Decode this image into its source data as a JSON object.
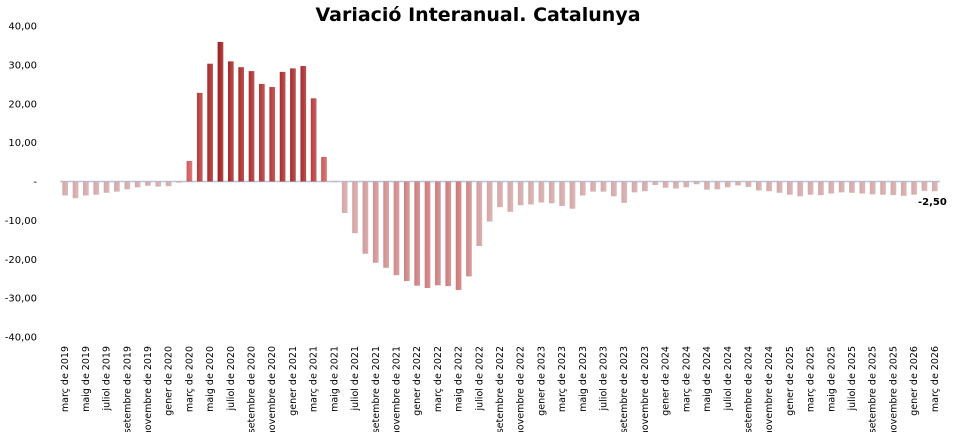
{
  "chart_data": {
    "type": "bar",
    "title": "Variació Interanual. Catalunya",
    "xlabel": "",
    "ylabel": "",
    "ylim": [
      -40,
      40
    ],
    "y_ticks": [
      40,
      30,
      20,
      10,
      0,
      -10,
      -20,
      -30,
      -40
    ],
    "y_tick_labels": [
      "40,00",
      "30,00",
      "20,00",
      "10,00",
      "-",
      "-10,00",
      "-20,00",
      "-30,00",
      "-40,00"
    ],
    "grid": false,
    "legend": "none",
    "categories": [
      "març de 2019",
      "abril de 2019",
      "maig de 2019",
      "juny de 2019",
      "juliol de 2019",
      "agost de 2019",
      "setembre de 2019",
      "octubre de 2019",
      "novembre de 2019",
      "desembre de 2019",
      "gener de 2020",
      "febrer de 2020",
      "març de 2020",
      "abril de 2020",
      "maig de 2020",
      "juny de 2020",
      "juliol de 2020",
      "agost de 2020",
      "setembre de 2020",
      "octubre de 2020",
      "novembre de 2020",
      "desembre de 2020",
      "gener de 2021",
      "febrer de 2021",
      "març de 2021",
      "abril de 2021",
      "maig de 2021",
      "juny de 2021",
      "juliol de 2021",
      "agost de 2021",
      "setembre de 2021",
      "octubre de 2021",
      "novembre de 2021",
      "desembre de 2021",
      "gener de 2022",
      "febrer de 2022",
      "març de 2022",
      "abril de 2022",
      "maig de 2022",
      "juny de 2022",
      "juliol de 2022",
      "agost de 2022",
      "setembre de 2022",
      "octubre de 2022",
      "novembre de 2022",
      "desembre de 2022",
      "gener de 2023",
      "febrer de 2023",
      "març de 2023",
      "abril de 2023",
      "maig de 2023",
      "juny de 2023",
      "juliol de 2023",
      "agost de 2023",
      "setembre de 2023",
      "octubre de 2023",
      "novembre de 2023",
      "desembre de 2023",
      "gener de 2024",
      "febrer de 2024",
      "març de 2024",
      "abril de 2024",
      "maig de 2024",
      "juny de 2024",
      "juliol de 2024",
      "agost de 2024",
      "setembre de 2024",
      "octubre de 2024",
      "novembre de 2024",
      "desembre de 2024",
      "gener de 2025",
      "febrer de 2025",
      "març de 2025",
      "abril de 2025",
      "maig de 2025",
      "juny de 2025",
      "juliol de 2025",
      "agost de 2025",
      "setembre de 2025",
      "octubre de 2025",
      "novembre de 2025",
      "desembre de 2025",
      "gener de 2026",
      "febrer de 2026",
      "març de 2026"
    ],
    "visible_tick_labels": [
      "març de 2019",
      "maig de 2019",
      "juliol de 2019",
      "setembre de 2019",
      "novembre de 2019",
      "gener de 2020",
      "març de 2020",
      "maig de 2020",
      "juliol de 2020",
      "setembre de 2020",
      "novembre de 2020",
      "gener de 2021",
      "març de 2021",
      "maig de 2021",
      "juliol de 2021",
      "setembre de 2021",
      "novembre de 2021",
      "gener de 2022",
      "març de 2022",
      "maig de 2022",
      "juliol de 2022",
      "setembre de 2022",
      "novembre de 2022",
      "gener de 2023",
      "març de 2023",
      "maig de 2023",
      "juliol de 2023",
      "setembre de 2023",
      "novembre de 2023",
      "gener de 2024",
      "març de 2024",
      "maig de 2024",
      "juliol de 2024",
      "setembre de 2024",
      "novembre de 2024",
      "gener de 2025",
      "març de 2025",
      "maig de 2025",
      "juliol de 2025",
      "setembre de 2025",
      "novembre de 2025",
      "gener de 2026",
      "març de 2026"
    ],
    "series": [
      {
        "values": [
          -3.6,
          -4.3,
          -3.6,
          -3.4,
          -2.9,
          -2.6,
          -2.0,
          -1.5,
          -1.1,
          -1.3,
          -1.2,
          -0.3,
          5.3,
          22.8,
          30.3,
          35.9,
          30.9,
          29.4,
          28.4,
          25.1,
          24.3,
          28.2,
          29.1,
          29.7,
          21.4,
          6.3,
          -0.2,
          -8.1,
          -13.3,
          -18.6,
          -20.9,
          -22.2,
          -24.1,
          -25.6,
          -26.8,
          -27.4,
          -26.7,
          -26.9,
          -27.9,
          -24.4,
          -16.6,
          -10.3,
          -6.6,
          -7.8,
          -6.1,
          -5.9,
          -5.4,
          -5.6,
          -6.3,
          -7.0,
          -3.6,
          -2.6,
          -2.6,
          -3.8,
          -5.5,
          -2.8,
          -2.5,
          -0.9,
          -1.6,
          -1.8,
          -1.5,
          -0.7,
          -2.1,
          -2.0,
          -1.5,
          -1.0,
          -1.4,
          -2.3,
          -2.5,
          -2.9,
          -3.4,
          -3.8,
          -3.4,
          -3.5,
          -3.1,
          -2.8,
          -2.9,
          -3.1,
          -3.3,
          -3.4,
          -3.5,
          -3.7,
          -3.4,
          -2.4,
          -2.5
        ]
      }
    ],
    "data_labels": [
      {
        "index": 84,
        "text": "-2,50"
      }
    ],
    "colors": {
      "pos_dark": "#9b1b1b",
      "pos_light": "#d76060",
      "neg_dark": "#c44040",
      "neg_light": "#d3a8a8",
      "zero_line": "#b8c4d6"
    }
  }
}
